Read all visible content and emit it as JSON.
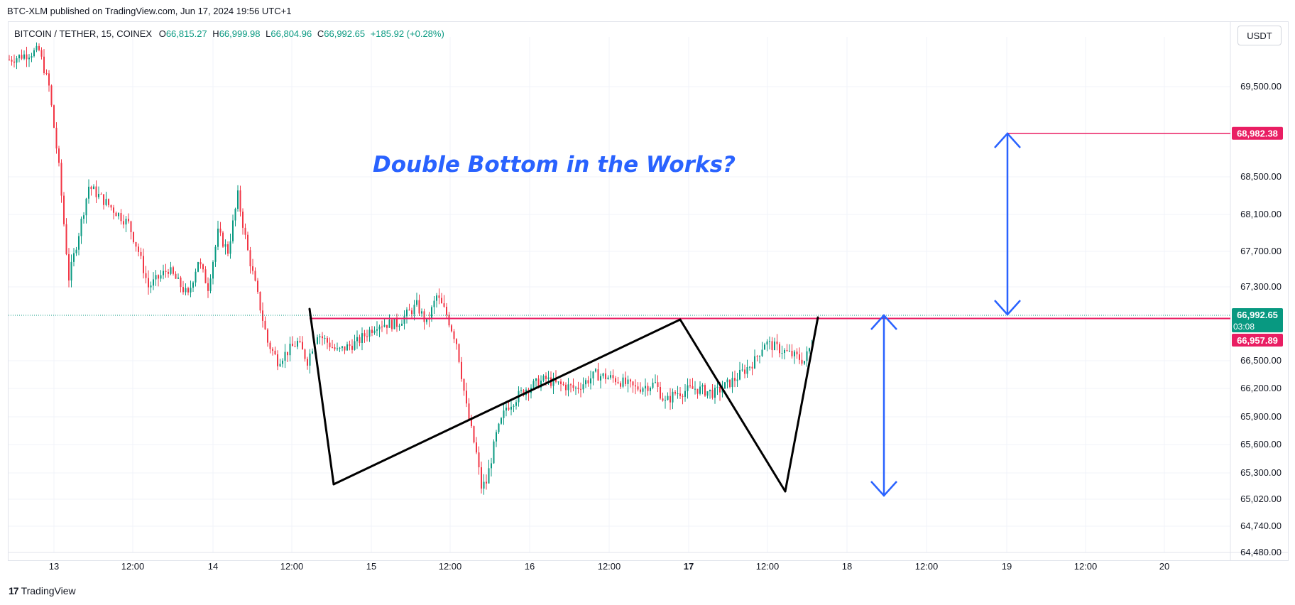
{
  "header": {
    "published": "BTC-XLM published on TradingView.com, Jun 17, 2024 19:56 UTC+1"
  },
  "legend": {
    "symbol": "BITCOIN / TETHER, 15, COINEX",
    "open_label": "O",
    "open": "66,815.27",
    "high_label": "H",
    "high": "66,999.98",
    "low_label": "L",
    "low": "66,804.96",
    "close_label": "C",
    "close": "66,992.65",
    "change": "+185.92 (+0.28%)"
  },
  "currency_button": "USDT",
  "annotation_text": "Double Bottom in the Works?",
  "watermark": {
    "logo": "17",
    "text": "TradingView"
  },
  "colors": {
    "up": "#089981",
    "down": "#f23645",
    "pattern_line": "#000000",
    "arrow": "#2962ff",
    "horizontal_line": "#e91e63",
    "grid": "#f0f3fa",
    "text": "#131722"
  },
  "chart_data": {
    "type": "candlestick",
    "y_axis": {
      "ticks": [
        "69,500.00",
        "68,500.00",
        "68,100.00",
        "67,700.00",
        "67,300.00",
        "66,500.00",
        "66,200.00",
        "65,900.00",
        "65,600.00",
        "65,300.00",
        "65,020.00",
        "64,740.00",
        "64,480.00"
      ],
      "tick_values": [
        69500,
        68500,
        68100,
        67700,
        67300,
        66500,
        66200,
        65900,
        65600,
        65300,
        65020,
        64740,
        64480
      ]
    },
    "x_axis": {
      "ticks": [
        "13",
        "12:00",
        "14",
        "12:00",
        "15",
        "12:00",
        "16",
        "12:00",
        "17",
        "12:00",
        "18",
        "12:00",
        "19",
        "12:00",
        "20"
      ],
      "bold_index": 8
    },
    "price_labels": {
      "current": "66,992.65",
      "countdown": "03:08",
      "level_line": "66,957.89",
      "target": "68,982.38"
    },
    "price_path": [
      [
        0,
        69800
      ],
      [
        6,
        69900
      ],
      [
        8,
        69500
      ],
      [
        10,
        68600
      ],
      [
        12,
        67400
      ],
      [
        14,
        67900
      ],
      [
        16,
        68400
      ],
      [
        20,
        68200
      ],
      [
        24,
        68000
      ],
      [
        26,
        67700
      ],
      [
        28,
        67300
      ],
      [
        32,
        67500
      ],
      [
        36,
        67200
      ],
      [
        38,
        67600
      ],
      [
        40,
        67300
      ],
      [
        42,
        67900
      ],
      [
        44,
        67700
      ],
      [
        46,
        68300
      ],
      [
        48,
        67700
      ],
      [
        50,
        67200
      ],
      [
        52,
        66700
      ],
      [
        54,
        66500
      ],
      [
        56,
        66600
      ],
      [
        58,
        66700
      ],
      [
        60,
        66500
      ],
      [
        62,
        66800
      ],
      [
        66,
        66600
      ],
      [
        70,
        66700
      ],
      [
        74,
        66900
      ],
      [
        78,
        66900
      ],
      [
        80,
        67000
      ],
      [
        82,
        67100
      ],
      [
        84,
        66900
      ],
      [
        86,
        67200
      ],
      [
        88,
        67000
      ],
      [
        90,
        66700
      ],
      [
        92,
        66000
      ],
      [
        94,
        65500
      ],
      [
        95,
        65150
      ],
      [
        96,
        65200
      ],
      [
        98,
        65700
      ],
      [
        100,
        66000
      ],
      [
        104,
        66200
      ],
      [
        108,
        66300
      ],
      [
        110,
        66250
      ],
      [
        114,
        66200
      ],
      [
        118,
        66350
      ],
      [
        122,
        66300
      ],
      [
        126,
        66200
      ],
      [
        130,
        66250
      ],
      [
        132,
        66050
      ],
      [
        134,
        66150
      ],
      [
        138,
        66200
      ],
      [
        142,
        66150
      ],
      [
        146,
        66300
      ],
      [
        150,
        66500
      ],
      [
        152,
        66700
      ],
      [
        156,
        66600
      ],
      [
        160,
        66500
      ],
      [
        162,
        66750
      ],
      [
        164,
        66600
      ],
      [
        166,
        66500
      ],
      [
        168,
        66350
      ],
      [
        170,
        66200
      ],
      [
        172,
        66300
      ],
      [
        174,
        66100
      ],
      [
        176,
        65700
      ],
      [
        178,
        65400
      ],
      [
        180,
        65250
      ],
      [
        182,
        65800
      ],
      [
        184,
        66300
      ],
      [
        186,
        66990
      ]
    ],
    "pattern_points": [
      [
        72,
        66950
      ],
      [
        76,
        65180
      ],
      [
        159,
        66950
      ],
      [
        184,
        65080
      ],
      [
        191,
        66990
      ]
    ],
    "level_line_value": 66957.89,
    "target_value": 68982.38,
    "arrows": [
      {
        "x": 236,
        "from": 68982.38,
        "to": 66980
      },
      {
        "x": 208,
        "from": 66980,
        "to": 65080
      }
    ]
  }
}
